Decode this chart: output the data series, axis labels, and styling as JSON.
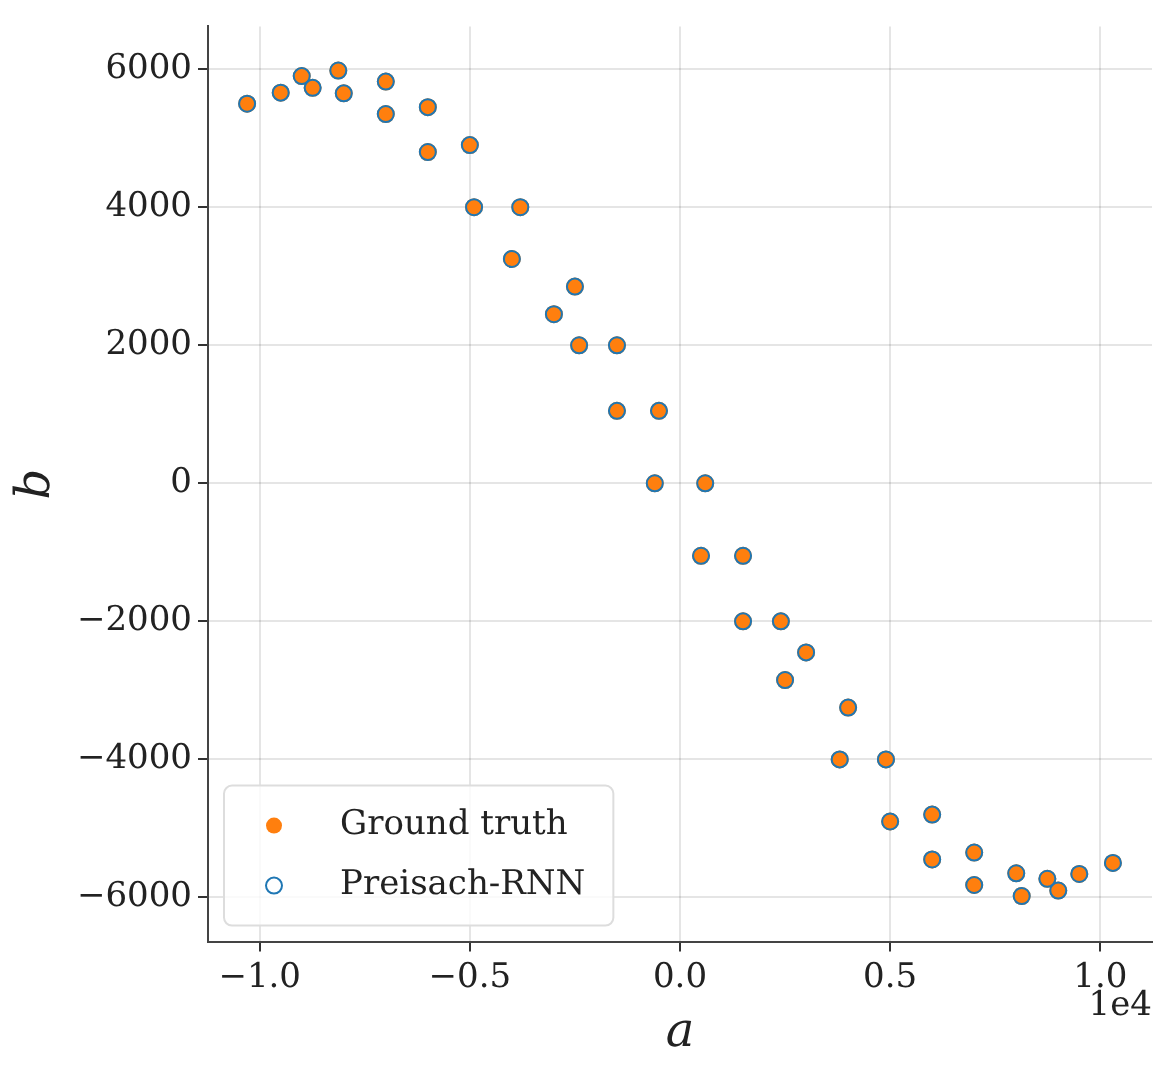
{
  "chart_data": {
    "type": "scatter",
    "xlabel": "a",
    "ylabel": "b",
    "annotations": [
      "1e4"
    ],
    "xlim": [
      -1.123,
      1.123
    ],
    "ylim": [
      -6640,
      6620
    ],
    "xticks": [
      {
        "value": -1,
        "label": "−1.0"
      },
      {
        "value": -0.5,
        "label": "−0.5"
      },
      {
        "value": 0,
        "label": "0.0"
      },
      {
        "value": 0.5,
        "label": "0.5"
      },
      {
        "value": 1,
        "label": "1.0"
      }
    ],
    "yticks": [
      {
        "value": -6000,
        "label": "−6000"
      },
      {
        "value": -4000,
        "label": "−4000"
      },
      {
        "value": -2000,
        "label": "−2000"
      },
      0,
      2000,
      4000,
      6000
    ],
    "grid": true,
    "legend": "bottom left",
    "marker": "circle",
    "series": [
      {
        "name": "Ground truth",
        "color": "#ff7f0e",
        "x": [
          -1.03,
          -0.95,
          -0.874,
          -0.8,
          -0.7,
          -0.6,
          -0.49,
          -0.4,
          -0.3,
          -0.24,
          -0.15,
          -0.06,
          0.05,
          0.15,
          0.25,
          0.38,
          0.5,
          0.6,
          0.7,
          0.813,
          0.9,
          1.03,
          0.95,
          0.874,
          0.8,
          0.7,
          0.6,
          0.49,
          0.4,
          0.3,
          0.24,
          0.15,
          0.06,
          -0.05,
          -0.15,
          -0.25,
          -0.38,
          -0.5,
          -0.6,
          -0.7,
          -0.813,
          -0.9
        ],
        "values": [
          5500,
          5660,
          5730,
          5650,
          5350,
          4800,
          4000,
          3250,
          2450,
          2000,
          1050,
          0,
          -1050,
          -2000,
          -2850,
          -4000,
          -4900,
          -5450,
          -5820,
          -5980,
          -5900,
          -5500,
          -5660,
          -5730,
          -5650,
          -5350,
          -4800,
          -4000,
          -3250,
          -2450,
          -2000,
          -1050,
          0,
          1050,
          2000,
          2850,
          4000,
          4900,
          5450,
          5820,
          5980,
          5900
        ]
      },
      {
        "name": "Preisach-RNN",
        "color": "#1f77b4",
        "x": [
          -1.03,
          -0.95,
          -0.874,
          -0.8,
          -0.7,
          -0.6,
          -0.49,
          -0.4,
          -0.3,
          -0.24,
          -0.15,
          -0.06,
          0.05,
          0.15,
          0.25,
          0.38,
          0.5,
          0.6,
          0.7,
          0.813,
          0.9,
          1.03,
          0.95,
          0.874,
          0.8,
          0.7,
          0.6,
          0.49,
          0.4,
          0.3,
          0.24,
          0.15,
          0.06,
          -0.05,
          -0.15,
          -0.25,
          -0.38,
          -0.5,
          -0.6,
          -0.7,
          -0.813,
          -0.9
        ],
        "values": [
          5500,
          5660,
          5730,
          5650,
          5350,
          4800,
          4000,
          3250,
          2450,
          2000,
          1050,
          0,
          -1050,
          -2000,
          -2850,
          -4000,
          -4900,
          -5450,
          -5820,
          -5980,
          -5900,
          -5500,
          -5660,
          -5730,
          -5650,
          -5350,
          -4800,
          -4000,
          -3250,
          -2450,
          -2000,
          -1050,
          0,
          1050,
          2000,
          2850,
          4000,
          4900,
          5450,
          5820,
          5980,
          5900
        ]
      }
    ]
  }
}
